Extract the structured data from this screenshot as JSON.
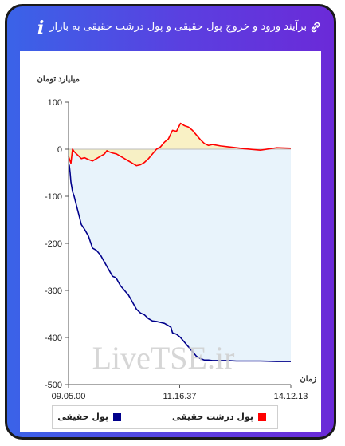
{
  "header": {
    "title": "برآیند ورود و خروج پول حقیقی و پول درشت حقیقی به بازار",
    "link_icon": "link-icon",
    "info_icon": "info-icon",
    "info_glyph": "i"
  },
  "watermark": "LiveTSE.ir",
  "colors": {
    "real_money": "#00008b",
    "big_real_money": "#ff0000",
    "real_fill": "#e8f3fb",
    "big_fill": "#f8f0bf"
  },
  "chart_data": {
    "type": "area",
    "ylabel": "میلیارد تومان",
    "xlabel": "زمان",
    "ylim": [
      -500,
      100
    ],
    "yticks": [
      100,
      0,
      -100,
      -200,
      -300,
      -400,
      -500
    ],
    "xtick_labels": [
      "09.05.00",
      "11.16.37",
      "14.12.13"
    ],
    "grid": false,
    "legend_position": "bottom",
    "series": [
      {
        "name": "پول حقیقی",
        "color": "#00008b",
        "x": [
          0,
          1,
          2,
          3,
          5,
          7,
          10,
          13,
          16,
          20,
          25,
          28,
          30,
          35,
          40,
          45,
          50,
          55,
          58,
          60,
          65,
          70,
          75,
          80,
          85,
          90,
          95,
          100,
          105,
          110,
          115,
          120,
          125,
          128,
          130,
          135,
          140,
          145,
          150,
          155,
          160,
          165,
          170,
          175,
          180,
          190,
          200,
          210,
          220,
          240,
          260,
          278
        ],
        "values": [
          -30,
          -35,
          -50,
          -70,
          -90,
          -100,
          -120,
          -140,
          -160,
          -170,
          -185,
          -200,
          -210,
          -215,
          -225,
          -240,
          -255,
          -270,
          -272,
          -275,
          -290,
          -300,
          -310,
          -325,
          -340,
          -348,
          -352,
          -360,
          -365,
          -366,
          -368,
          -370,
          -375,
          -378,
          -390,
          -393,
          -400,
          -410,
          -420,
          -430,
          -440,
          -445,
          -448,
          -448,
          -449,
          -449,
          -449,
          -450,
          -450,
          -450,
          -451,
          -451
        ]
      },
      {
        "name": "پول درشت حقیقی",
        "color": "#ff0000",
        "x": [
          0,
          3,
          5,
          7,
          10,
          13,
          16,
          20,
          25,
          30,
          35,
          40,
          45,
          48,
          50,
          55,
          60,
          65,
          70,
          75,
          80,
          85,
          90,
          95,
          100,
          105,
          110,
          115,
          120,
          125,
          130,
          135,
          140,
          145,
          150,
          155,
          160,
          165,
          170,
          175,
          180,
          190,
          200,
          210,
          220,
          240,
          260,
          278
        ],
        "values": [
          -15,
          -30,
          0,
          -5,
          -10,
          -15,
          -20,
          -18,
          -22,
          -25,
          -20,
          -15,
          -10,
          -3,
          -5,
          -8,
          -10,
          -15,
          -20,
          -25,
          -30,
          -35,
          -33,
          -28,
          -20,
          -10,
          0,
          5,
          15,
          22,
          40,
          38,
          55,
          50,
          47,
          40,
          30,
          20,
          12,
          8,
          10,
          7,
          5,
          3,
          1,
          -2,
          3,
          2
        ]
      }
    ],
    "watermark": "LiveTSE.ir"
  }
}
